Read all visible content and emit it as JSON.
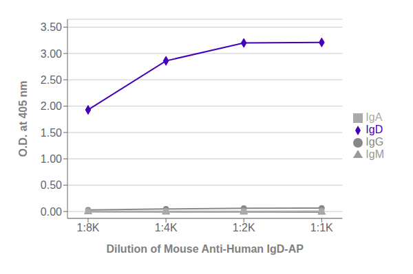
{
  "chart_data": {
    "type": "line",
    "categories": [
      "1:8K",
      "1:4K",
      "1:2K",
      "1:1K"
    ],
    "series": [
      {
        "name": "IgD",
        "color": "#4400BB",
        "marker": "diamond",
        "values": [
          1.93,
          2.86,
          3.2,
          3.21
        ]
      },
      {
        "name": "IgG",
        "color": "#888888",
        "marker": "circle",
        "values": [
          0.03,
          0.048,
          0.062,
          0.065
        ]
      },
      {
        "name": "IgM",
        "color": "#999999",
        "marker": "triangle",
        "values": [
          -0.005,
          -0.01,
          -0.01,
          -0.012
        ]
      },
      {
        "name": "IgA",
        "color": "#aaaaaa",
        "marker": "square",
        "values": [
          0.005,
          0.005,
          0.005,
          0.008
        ]
      }
    ],
    "xlabel": "Dilution of Mouse Anti-Human IgD-AP",
    "ylabel": "O.D. at 405 nm",
    "ylim": [
      -0.13,
      3.65
    ],
    "yticks": [
      {
        "value": 0.0,
        "label": "0.00"
      },
      {
        "value": 0.5,
        "label": "0.50"
      },
      {
        "value": 1.0,
        "label": "1.00"
      },
      {
        "value": 1.5,
        "label": "1.50"
      },
      {
        "value": 2.0,
        "label": "2.00"
      },
      {
        "value": 2.5,
        "label": "2.50"
      },
      {
        "value": 3.0,
        "label": "3.00"
      },
      {
        "value": 3.5,
        "label": "3.50"
      }
    ],
    "grid": true,
    "legend": "right"
  }
}
